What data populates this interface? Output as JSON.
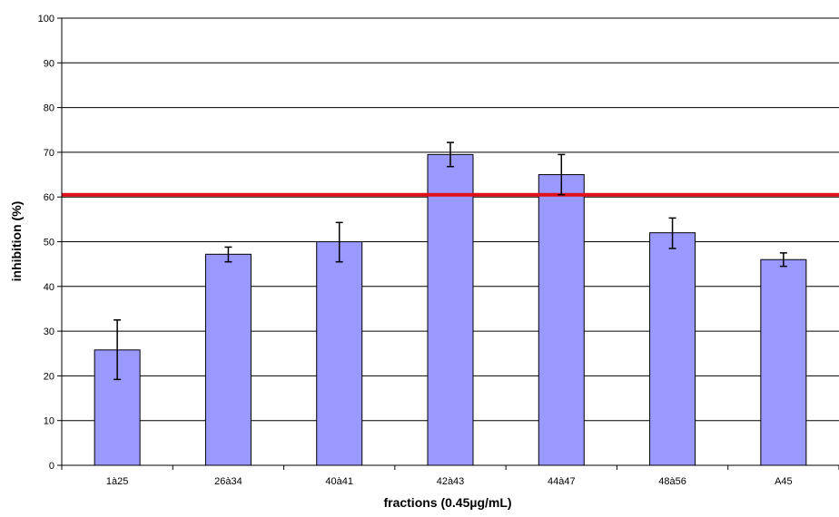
{
  "chart_data": {
    "type": "bar",
    "title": "",
    "xlabel": "fractions (0.45µg/mL)",
    "ylabel": "inhibition (%)",
    "ylim": [
      0,
      100
    ],
    "yticks": [
      0,
      10,
      20,
      30,
      40,
      50,
      60,
      70,
      80,
      90,
      100
    ],
    "categories": [
      "1à25",
      "26à34",
      "40à41",
      "42à43",
      "44à47",
      "48à56",
      "A45"
    ],
    "values": [
      25.8,
      47.2,
      50.0,
      69.5,
      65.0,
      52.0,
      46.0
    ],
    "error_low": [
      19.2,
      45.5,
      45.5,
      66.8,
      60.5,
      48.5,
      44.5
    ],
    "error_high": [
      32.5,
      48.8,
      54.3,
      72.2,
      69.5,
      55.3,
      47.5
    ],
    "reference_line": 60.5,
    "grid": true,
    "legend": "none",
    "colors": {
      "bar_fill": "#9999ff",
      "bar_stroke": "#000000",
      "reference_line": "#e0101a",
      "grid": "#000000"
    }
  }
}
